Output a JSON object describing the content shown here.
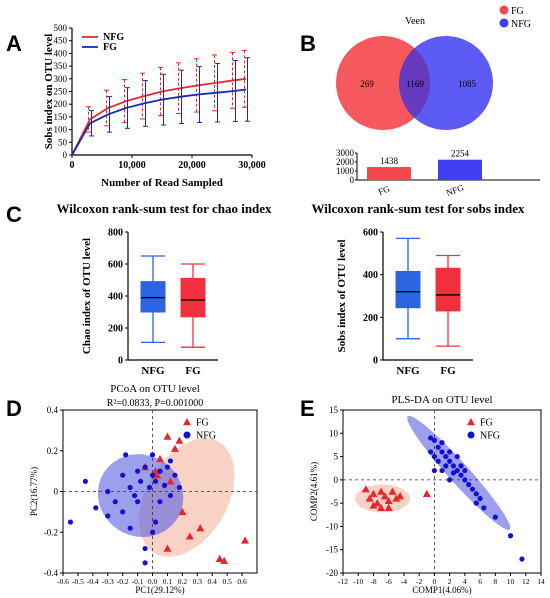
{
  "panels": {
    "A": "A",
    "B": "B",
    "C": "C",
    "D": "D",
    "E": "E"
  },
  "colors": {
    "fg": "#e8262e",
    "nfg": "#1a2bb0",
    "fg_venn": "#f4464b",
    "nfg_venn": "#3f3ef2",
    "fg_box": "#f0313c",
    "nfg_box": "#2a64e0",
    "fg_ellipse": "#f2b49e",
    "nfg_ellipse": "#5a5fe0"
  },
  "chart_data": [
    {
      "id": "A",
      "type": "line",
      "xlabel": "Number of Read Sampled",
      "ylabel": "Sobs index on OTU level",
      "xlim": [
        0,
        30000
      ],
      "ylim": [
        0,
        500
      ],
      "xticks": [
        "0",
        "10,000",
        "20,000",
        "30,000"
      ],
      "yticks": [
        "0",
        "50",
        "100",
        "150",
        "200",
        "250",
        "300",
        "350",
        "400",
        "450",
        "500"
      ],
      "legend": [
        "NFG",
        "FG"
      ],
      "legend_position": "top-left",
      "x": [
        0,
        3000,
        6000,
        9000,
        12000,
        15000,
        18000,
        21000,
        24000,
        27000,
        29000
      ],
      "series": [
        {
          "name": "NFG",
          "values": [
            0,
            140,
            185,
            212,
            232,
            250,
            263,
            274,
            284,
            294,
            300
          ],
          "err": [
            0,
            50,
            70,
            85,
            90,
            95,
            100,
            105,
            110,
            110,
            112
          ]
        },
        {
          "name": "FG",
          "values": [
            0,
            125,
            160,
            185,
            203,
            218,
            229,
            238,
            245,
            252,
            258
          ],
          "err": [
            0,
            50,
            70,
            80,
            90,
            100,
            105,
            110,
            115,
            120,
            125
          ]
        }
      ]
    },
    {
      "id": "B",
      "type": "venn",
      "title": "Veen",
      "legend": [
        "FG",
        "NFG"
      ],
      "legend_position": "top-right",
      "fg_only": "269",
      "shared": "1169",
      "nfg_only": "1085",
      "bars": {
        "categories": [
          "FG",
          "NFG"
        ],
        "values": [
          1438,
          2254
        ],
        "labels": [
          "1438",
          "2254"
        ],
        "ylim": [
          0,
          3000
        ],
        "yticks": [
          "0",
          "1000",
          "2000",
          "3000"
        ]
      }
    },
    {
      "id": "C-left",
      "type": "box",
      "title": "Wilcoxon rank-sum test for chao index",
      "ylabel": "Chao index of OTU level",
      "ylim": [
        0,
        800
      ],
      "yticks": [
        "0",
        "200",
        "400",
        "600",
        "800"
      ],
      "categories": [
        "NFG",
        "FG"
      ],
      "boxes": [
        {
          "name": "NFG",
          "min": 110,
          "q1": 300,
          "median": 390,
          "q3": 490,
          "max": 650
        },
        {
          "name": "FG",
          "min": 80,
          "q1": 270,
          "median": 375,
          "q3": 510,
          "max": 600
        }
      ]
    },
    {
      "id": "C-right",
      "type": "box",
      "title": "Wilcoxon rank-sum test for sobs index",
      "ylabel": "Sobs index of OTU level",
      "ylim": [
        0,
        600
      ],
      "yticks": [
        "0",
        "200",
        "400",
        "600"
      ],
      "categories": [
        "NFG",
        "FG"
      ],
      "boxes": [
        {
          "name": "NFG",
          "min": 100,
          "q1": 245,
          "median": 320,
          "q3": 415,
          "max": 570
        },
        {
          "name": "FG",
          "min": 65,
          "q1": 230,
          "median": 305,
          "q3": 430,
          "max": 490
        }
      ]
    },
    {
      "id": "D",
      "type": "scatter",
      "title": "PCoA on OTU level",
      "subtitle": "R²=0.0833, P=0.001000",
      "xlabel": "PC1(29.12%)",
      "ylabel": "PC2(16.77%)",
      "xlim": [
        -0.6,
        0.7
      ],
      "ylim": [
        -0.4,
        0.4
      ],
      "xticks": [
        "-0.6",
        "-0.5",
        "-0.4",
        "-0.3",
        "-0.2",
        "-0.1",
        "0.0",
        "0.1",
        "0.2",
        "0.3",
        "0.4",
        "0.5",
        "0.6"
      ],
      "yticks": [
        "-0.4",
        "-0.2",
        "0",
        "0.2",
        "0.4"
      ],
      "legend": [
        "FG",
        "NFG"
      ],
      "legend_position": "top-right",
      "series": [
        {
          "name": "FG",
          "marker": "triangle",
          "points": [
            [
              0.1,
              0.27
            ],
            [
              0.18,
              0.25
            ],
            [
              0.15,
              0.21
            ],
            [
              0.05,
              0.16
            ],
            [
              -0.05,
              0.12
            ],
            [
              0.02,
              0.1
            ],
            [
              0.12,
              0.05
            ],
            [
              0.2,
              -0.1
            ],
            [
              0.25,
              -0.22
            ],
            [
              0.32,
              -0.18
            ],
            [
              0.45,
              -0.33
            ],
            [
              0.48,
              -0.34
            ],
            [
              0.62,
              -0.24
            ],
            [
              0.1,
              -0.28
            ],
            [
              0.03,
              0.08
            ]
          ]
        },
        {
          "name": "NFG",
          "marker": "circle",
          "points": [
            [
              -0.45,
              0.05
            ],
            [
              -0.38,
              -0.08
            ],
            [
              -0.3,
              -0.12
            ],
            [
              -0.2,
              0.08
            ],
            [
              -0.15,
              0.02
            ],
            [
              -0.1,
              -0.05
            ],
            [
              -0.05,
              0.12
            ],
            [
              0.0,
              0.08
            ],
            [
              0.02,
              0.05
            ],
            [
              0.05,
              0.1
            ],
            [
              0.08,
              0.03
            ],
            [
              0.1,
              0.12
            ],
            [
              0.12,
              0.15
            ],
            [
              0.15,
              0.08
            ],
            [
              -0.08,
              0.05
            ],
            [
              -0.12,
              -0.02
            ],
            [
              -0.2,
              -0.1
            ],
            [
              -0.25,
              -0.05
            ],
            [
              0.0,
              -0.2
            ],
            [
              -0.05,
              -0.28
            ],
            [
              0.02,
              -0.15
            ],
            [
              -0.15,
              -0.18
            ],
            [
              -0.55,
              -0.15
            ],
            [
              0.05,
              -0.05
            ],
            [
              -0.02,
              0.02
            ],
            [
              -0.1,
              0.1
            ],
            [
              0.18,
              0.02
            ],
            [
              0.12,
              -0.02
            ],
            [
              -0.3,
              0.0
            ],
            [
              -0.05,
              -0.35
            ],
            [
              -0.18,
              0.18
            ],
            [
              0.0,
              0.18
            ]
          ]
        }
      ],
      "ellipses": [
        {
          "name": "FG",
          "cx": 0.23,
          "cy": -0.03,
          "rx": 0.43,
          "ry": 0.2,
          "angle": -60
        },
        {
          "name": "NFG",
          "cx": -0.08,
          "cy": -0.02,
          "rx": 0.29,
          "ry": 0.2,
          "angle": 30
        }
      ]
    },
    {
      "id": "E",
      "type": "scatter",
      "title": "PLS-DA on OTU level",
      "xlabel": "COMP1(4.06%)",
      "ylabel": "COMP2(4.61%)",
      "xlim": [
        -12,
        14
      ],
      "ylim": [
        -20,
        15
      ],
      "xticks": [
        "-12",
        "-10",
        "-8",
        "-6",
        "-4",
        "-2",
        "0",
        "2",
        "4",
        "6",
        "8",
        "10",
        "12",
        "14"
      ],
      "yticks": [
        "-20",
        "-15",
        "-10",
        "-5",
        "0",
        "5",
        "10",
        "15"
      ],
      "legend": [
        "FG",
        "NFG"
      ],
      "legend_position": "top-right",
      "series": [
        {
          "name": "FG",
          "marker": "triangle",
          "points": [
            [
              -9,
              -2
            ],
            [
              -8.5,
              -4
            ],
            [
              -8,
              -3
            ],
            [
              -7.5,
              -5
            ],
            [
              -7,
              -6
            ],
            [
              -6.5,
              -3.5
            ],
            [
              -6,
              -4.5
            ],
            [
              -5.5,
              -2.5
            ],
            [
              -5,
              -4
            ],
            [
              -7,
              -2.5
            ],
            [
              -6,
              -6
            ],
            [
              -8,
              -5.5
            ],
            [
              -1,
              -3
            ],
            [
              -4.5,
              -3.5
            ]
          ]
        },
        {
          "name": "NFG",
          "marker": "circle",
          "points": [
            [
              -0.5,
              9
            ],
            [
              0,
              8.5
            ],
            [
              0.5,
              7
            ],
            [
              1,
              6
            ],
            [
              1.5,
              5
            ],
            [
              2,
              4
            ],
            [
              2.5,
              3
            ],
            [
              3,
              2
            ],
            [
              3.5,
              1
            ],
            [
              4,
              0
            ],
            [
              4.5,
              -1
            ],
            [
              5,
              -2
            ],
            [
              5.5,
              -3
            ],
            [
              6,
              -4
            ],
            [
              1,
              8
            ],
            [
              0.5,
              4
            ],
            [
              2,
              6
            ],
            [
              3,
              5
            ],
            [
              1.5,
              3
            ],
            [
              2.5,
              1.5
            ],
            [
              3.5,
              3
            ],
            [
              4,
              2
            ],
            [
              0,
              5
            ],
            [
              -0.5,
              6
            ],
            [
              1,
              2
            ],
            [
              6.5,
              -6
            ],
            [
              8,
              -8
            ],
            [
              10,
              -12
            ],
            [
              11.5,
              -17
            ],
            [
              5.5,
              -5
            ],
            [
              2,
              0
            ],
            [
              0,
              2
            ]
          ]
        }
      ],
      "ellipses": [
        {
          "name": "FG",
          "cx": -6.8,
          "cy": -4,
          "rx": 3.6,
          "ry": 3,
          "angle": 0
        },
        {
          "name": "NFG",
          "cx": 3.2,
          "cy": 1.5,
          "rx": 10,
          "ry": 2.2,
          "angle": 48
        }
      ]
    }
  ]
}
